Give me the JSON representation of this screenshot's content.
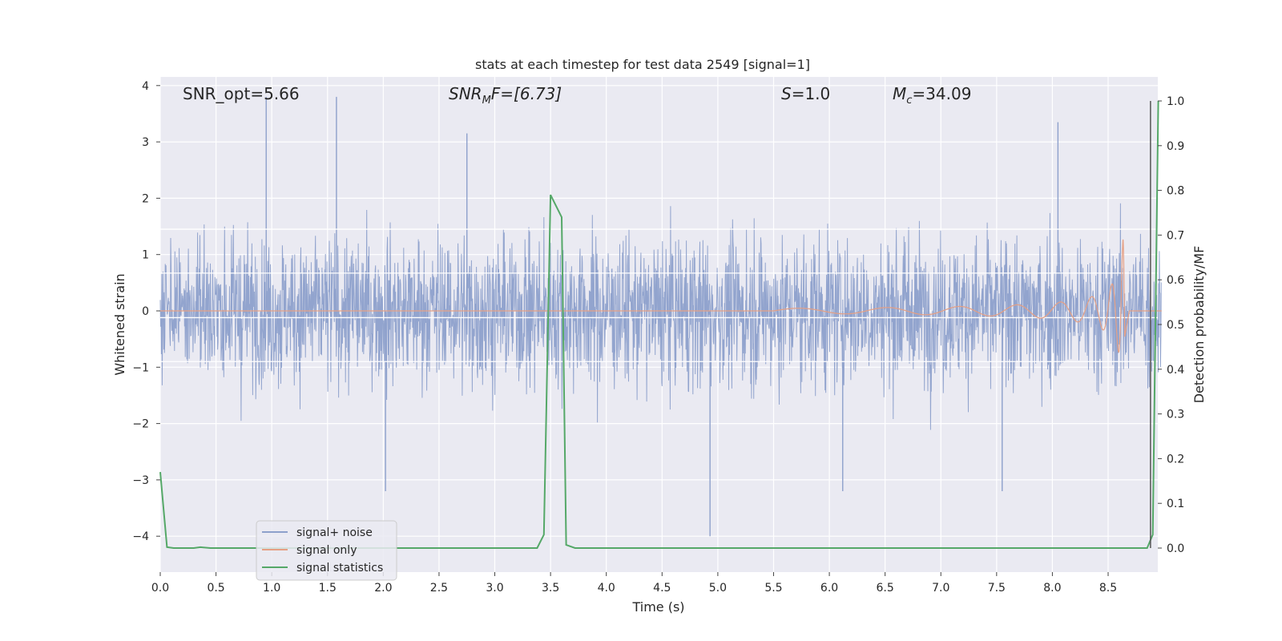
{
  "chart_data": {
    "type": "line",
    "title": "stats at each timestep for test data 2549 [signal=1]",
    "xlabel": "Time (s)",
    "ylabel": "Whitened strain",
    "y2label": "Detection probability/MF",
    "xlim": [
      0,
      9.0
    ],
    "ylim": [
      -4.4,
      4.2
    ],
    "y2lim": [
      -0.045,
      1.045
    ],
    "xticks": [
      "0.0",
      "0.5",
      "1.0",
      "1.5",
      "2.0",
      "2.5",
      "3.0",
      "3.5",
      "4.0",
      "4.5",
      "5.0",
      "5.5",
      "6.0",
      "6.5",
      "7.0",
      "7.5",
      "8.0",
      "8.5"
    ],
    "yticks": [
      "4",
      "3",
      "2",
      "1",
      "0",
      "−1",
      "−2",
      "−3",
      "−4"
    ],
    "y2ticks": [
      "1.0",
      "0.9",
      "0.8",
      "0.7",
      "0.6",
      "0.5",
      "0.4",
      "0.3",
      "0.2",
      "0.1",
      "0.0"
    ],
    "grid": true,
    "legend_position": "lower-left",
    "annotations": {
      "snr_opt": "SNR_opt=5.66",
      "snr_mf_main": "SNR",
      "snr_mf_sub": "M",
      "snr_mf_rest": "F=[6.73]",
      "s_main": "S",
      "s_rest": "=1.0",
      "mc_main": "M",
      "mc_sub": "c",
      "mc_rest": "=34.09"
    },
    "series": [
      {
        "name": "signal+ noise",
        "color": "#8da0cb",
        "description": "whitened noisy strain spanning roughly -4 to 4",
        "envelope_peaks": [
          {
            "x": 0.95,
            "y": 3.8
          },
          {
            "x": 1.58,
            "y": 3.8
          },
          {
            "x": 2.75,
            "y": 3.15
          },
          {
            "x": 8.05,
            "y": 3.35
          },
          {
            "x": 4.93,
            "y": -4.0
          },
          {
            "x": 6.12,
            "y": -3.2
          },
          {
            "x": 7.55,
            "y": -3.2
          },
          {
            "x": 2.02,
            "y": -3.2
          }
        ]
      },
      {
        "name": "signal only",
        "color": "#e5a085",
        "description": "chirp waveform, amplitude growing until merger near t=8.65 s",
        "chirp": {
          "start_x": 5.5,
          "merger_x": 8.65,
          "max_amp": 1.3
        }
      },
      {
        "name": "signal statistics",
        "color": "#55a868",
        "axis": "y2",
        "x": [
          0.0,
          0.06,
          0.12,
          0.2,
          0.3,
          0.36,
          0.45,
          1.0,
          2.0,
          3.0,
          3.38,
          3.44,
          3.5,
          3.6,
          3.64,
          3.72,
          4.0,
          5.0,
          6.0,
          7.0,
          8.0,
          8.85,
          8.9,
          8.95
        ],
        "y": [
          0.17,
          0.002,
          0.0,
          0.0,
          0.0,
          0.002,
          0.0,
          0.0,
          0.0,
          0.0,
          0.0,
          0.03,
          0.79,
          0.74,
          0.007,
          0.0,
          0.0,
          0.0,
          0.0,
          0.0,
          0.0,
          0.0,
          0.03,
          1.0
        ]
      },
      {
        "name": "marker",
        "color": "#555555",
        "axis": "y2",
        "vline_x": 8.88,
        "y_range": [
          0.0,
          1.0
        ]
      }
    ],
    "hlines_white": [
      1.45,
      0.67,
      -0.12,
      -0.9
    ]
  }
}
